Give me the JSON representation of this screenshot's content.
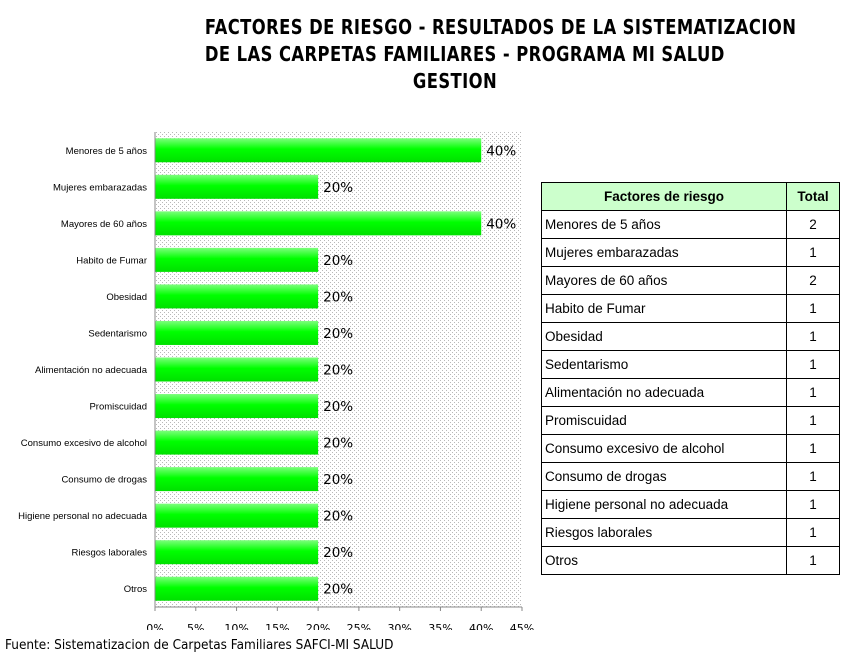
{
  "title_lines": [
    "FACTORES DE RIESGO - RESULTADOS DE LA SISTEMATIZACION",
    "DE LAS CARPETAS FAMILIARES - PROGRAMA MI SALUD",
    "GESTION"
  ],
  "chart_data": {
    "type": "bar",
    "orientation": "horizontal",
    "categories": [
      "Menores de 5 años",
      "Mujeres embarazadas",
      "Mayores de 60 años",
      "Habito de Fumar",
      "Obesidad",
      "Sedentarismo",
      "Alimentación no adecuada",
      "Promiscuidad",
      "Consumo excesivo de alcohol",
      "Consumo de drogas",
      "Higiene personal no adecuada",
      "Riesgos laborales",
      "Otros"
    ],
    "values": [
      40,
      20,
      40,
      20,
      20,
      20,
      20,
      20,
      20,
      20,
      20,
      20,
      20
    ],
    "value_labels": [
      "40%",
      "20%",
      "40%",
      "20%",
      "20%",
      "20%",
      "20%",
      "20%",
      "20%",
      "20%",
      "20%",
      "20%",
      "20%"
    ],
    "xlim": [
      0,
      45
    ],
    "x_ticks": [
      "0%",
      "5%",
      "10%",
      "15%",
      "20%",
      "25%",
      "30%",
      "35%",
      "40%",
      "45%"
    ],
    "bar_color": "#00ff00",
    "plot_background": "dotted",
    "grid": false,
    "legend": "none"
  },
  "table": {
    "headers": [
      "Factores de riesgo",
      "Total"
    ],
    "header_color": "#ccffcc",
    "rows": [
      [
        "Menores de 5 años",
        "2"
      ],
      [
        "Mujeres embarazadas",
        "1"
      ],
      [
        "Mayores de 60 años",
        "2"
      ],
      [
        "Habito de Fumar",
        "1"
      ],
      [
        "Obesidad",
        "1"
      ],
      [
        "Sedentarismo",
        "1"
      ],
      [
        "Alimentación no adecuada",
        "1"
      ],
      [
        "Promiscuidad",
        "1"
      ],
      [
        "Consumo excesivo de alcohol",
        "1"
      ],
      [
        "Consumo de drogas",
        "1"
      ],
      [
        "Higiene personal no adecuada",
        "1"
      ],
      [
        "Riesgos laborales",
        "1"
      ],
      [
        "Otros",
        "1"
      ]
    ]
  },
  "source": "Fuente: Sistematizacion de Carpetas Familiares SAFCI-MI SALUD"
}
